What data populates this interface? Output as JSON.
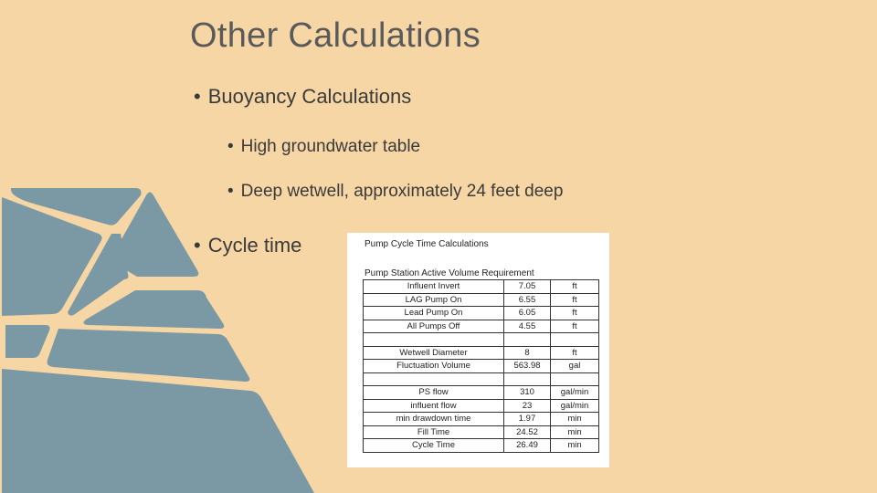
{
  "slide": {
    "title": "Other Calculations",
    "bullets": {
      "buoyancy": "Buoyancy Calculations",
      "groundwater": "High groundwater table",
      "wetwell": "Deep wetwell, approximately 24 feet deep",
      "cycle": "Cycle time"
    },
    "bullet_glyph": "•"
  },
  "colors": {
    "background": "#f7d6a5",
    "decor_shape": "#7a99a4",
    "title_text": "#5a5a5a"
  },
  "table": {
    "title": "Pump Cycle Time Calculations",
    "caption": "Pump Station Active Volume Requirement",
    "rows": [
      {
        "label": "Influent Invert",
        "value": "7.05",
        "unit": "ft"
      },
      {
        "label": "LAG Pump On",
        "value": "6.55",
        "unit": "ft"
      },
      {
        "label": "Lead Pump On",
        "value": "6.05",
        "unit": "ft"
      },
      {
        "label": "All Pumps Off",
        "value": "4.55",
        "unit": "ft"
      },
      {
        "label": "",
        "value": "",
        "unit": ""
      },
      {
        "label": "Wetwell Diameter",
        "value": "8",
        "unit": "ft"
      },
      {
        "label": "Fluctuation Volume",
        "value": "563.98",
        "unit": "gal"
      },
      {
        "label": "",
        "value": "",
        "unit": ""
      },
      {
        "label": "PS flow",
        "value": "310",
        "unit": "gal/min"
      },
      {
        "label": "influent flow",
        "value": "23",
        "unit": "gal/min"
      },
      {
        "label": "min drawdown time",
        "value": "1.97",
        "unit": "min"
      },
      {
        "label": "Fill Time",
        "value": "24.52",
        "unit": "min"
      },
      {
        "label": "Cycle Time",
        "value": "26.49",
        "unit": "min"
      }
    ]
  }
}
